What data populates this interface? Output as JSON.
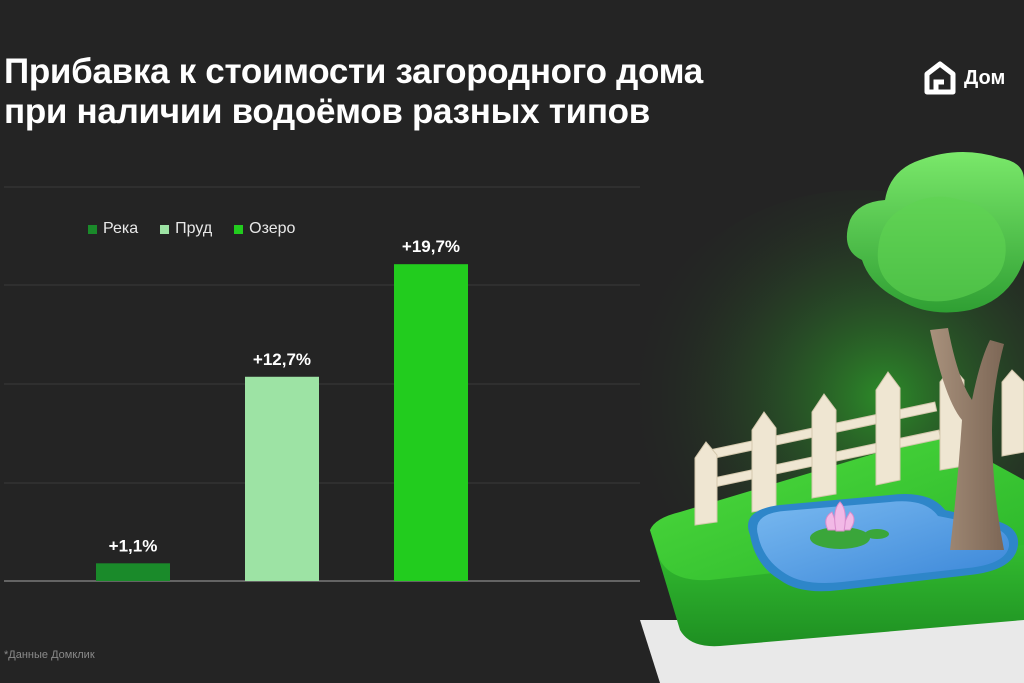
{
  "title_lines": [
    "Прибавка к стоимости загородного дома",
    "при наличии водоёмов разных типов"
  ],
  "brand": {
    "name": "Дом",
    "accent": "#ffffff"
  },
  "footnote": "*Данные Домклик",
  "chart_data": {
    "type": "bar",
    "categories": [
      "Река",
      "Пруд",
      "Озеро"
    ],
    "values": [
      1.1,
      12.7,
      19.7
    ],
    "data_labels": [
      "+1,1%",
      "+12,7%",
      "+19,7%"
    ],
    "colors": [
      "#1a8a2a",
      "#9de3a4",
      "#22cc1e"
    ],
    "legend": [
      {
        "label": "Река",
        "color": "#1a8a2a"
      },
      {
        "label": "Пруд",
        "color": "#9de3a4"
      },
      {
        "label": "Озеро",
        "color": "#22cc1e"
      }
    ],
    "legend_position": "top-left",
    "ylim": [
      0,
      24.5
    ],
    "grid": true,
    "xlabel": "",
    "ylabel": ""
  },
  "illustration": "pond-with-tree-and-fence"
}
